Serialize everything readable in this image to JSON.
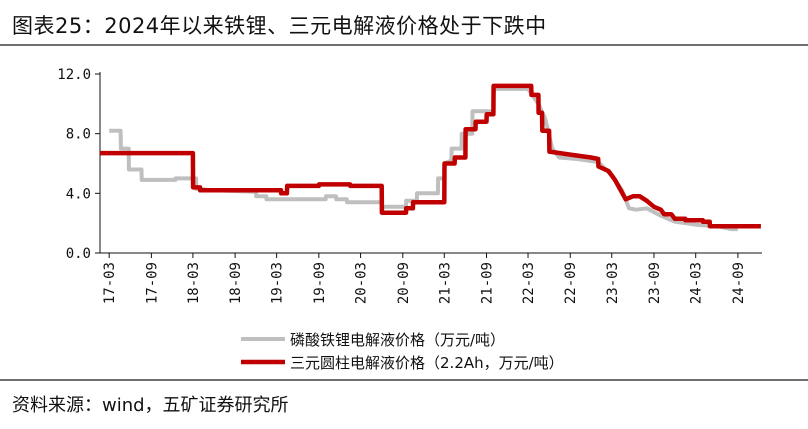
{
  "title": "图表25：2024年以来铁锂、三元电解液价格处于下跌中",
  "source": "资料来源：wind，五矿证券研究所",
  "chart_data": {
    "type": "line",
    "x_type": "date",
    "xlim": [
      "2017-01-20",
      "2024-12-15"
    ],
    "ylim": [
      0,
      12
    ],
    "y_ticks": [
      0,
      4,
      8,
      12
    ],
    "y_tick_labels": [
      "0.0",
      "4.0",
      "8.0",
      "12.0"
    ],
    "x_ticks": [
      "2017-03",
      "2017-09",
      "2018-03",
      "2018-09",
      "2019-03",
      "2019-09",
      "2020-03",
      "2020-09",
      "2021-03",
      "2021-09",
      "2022-03",
      "2022-09",
      "2023-03",
      "2023-09",
      "2024-03",
      "2024-09"
    ],
    "x_tick_labels": [
      "17-03",
      "17-09",
      "18-03",
      "18-09",
      "19-03",
      "19-09",
      "20-03",
      "20-09",
      "21-03",
      "21-09",
      "22-03",
      "22-09",
      "23-03",
      "23-09",
      "24-03",
      "24-09"
    ],
    "legend_position": "bottom-center",
    "grid": false,
    "series": [
      {
        "name": "磷酸铁锂电解液价格（万元/吨）",
        "color": "#bfbfbf",
        "points": [
          [
            "2017-03-01",
            8.2
          ],
          [
            "2017-04-20",
            8.2
          ],
          [
            "2017-04-21",
            7.0
          ],
          [
            "2017-05-25",
            7.0
          ],
          [
            "2017-05-26",
            5.6
          ],
          [
            "2017-07-20",
            5.6
          ],
          [
            "2017-07-21",
            4.9
          ],
          [
            "2017-12-15",
            4.9
          ],
          [
            "2017-12-16",
            5.0
          ],
          [
            "2018-03-15",
            5.0
          ],
          [
            "2018-03-16",
            4.3
          ],
          [
            "2018-06-01",
            4.2
          ],
          [
            "2018-12-01",
            4.1
          ],
          [
            "2018-12-02",
            3.8
          ],
          [
            "2019-01-15",
            3.8
          ],
          [
            "2019-01-16",
            3.6
          ],
          [
            "2019-10-01",
            3.6
          ],
          [
            "2019-10-02",
            3.8
          ],
          [
            "2019-11-15",
            3.8
          ],
          [
            "2019-11-16",
            3.6
          ],
          [
            "2020-01-01",
            3.6
          ],
          [
            "2020-01-02",
            3.4
          ],
          [
            "2020-06-01",
            3.4
          ],
          [
            "2020-06-02",
            3.1
          ],
          [
            "2020-09-15",
            3.1
          ],
          [
            "2020-09-16",
            3.5
          ],
          [
            "2020-11-01",
            3.5
          ],
          [
            "2020-11-02",
            4.0
          ],
          [
            "2021-02-01",
            4.0
          ],
          [
            "2021-02-02",
            5.0
          ],
          [
            "2021-03-01",
            5.0
          ],
          [
            "2021-03-02",
            6.0
          ],
          [
            "2021-04-01",
            6.2
          ],
          [
            "2021-04-02",
            7.0
          ],
          [
            "2021-05-15",
            7.0
          ],
          [
            "2021-05-16",
            8.0
          ],
          [
            "2021-07-01",
            8.0
          ],
          [
            "2021-07-02",
            9.5
          ],
          [
            "2021-10-01",
            9.5
          ],
          [
            "2021-10-02",
            11.0
          ],
          [
            "2022-03-01",
            11.0
          ],
          [
            "2022-04-15",
            10.0
          ],
          [
            "2022-05-15",
            9.0
          ],
          [
            "2022-06-15",
            7.0
          ],
          [
            "2022-07-15",
            6.4
          ],
          [
            "2022-10-01",
            6.3
          ],
          [
            "2023-01-01",
            6.1
          ],
          [
            "2023-03-01",
            5.2
          ],
          [
            "2023-04-15",
            4.2
          ],
          [
            "2023-05-15",
            3.0
          ],
          [
            "2023-06-15",
            2.9
          ],
          [
            "2023-08-01",
            3.0
          ],
          [
            "2023-10-01",
            2.5
          ],
          [
            "2023-12-01",
            2.1
          ],
          [
            "2024-03-01",
            1.9
          ],
          [
            "2024-06-01",
            1.8
          ],
          [
            "2024-08-01",
            1.6
          ],
          [
            "2024-09-01",
            1.6
          ]
        ]
      },
      {
        "name": "三元圆柱电解液价格（2.2Ah，万元/吨）",
        "color": "#c00000",
        "points": [
          [
            "2017-01-20",
            6.7
          ],
          [
            "2018-03-01",
            6.7
          ],
          [
            "2018-03-02",
            4.4
          ],
          [
            "2018-04-01",
            4.4
          ],
          [
            "2018-04-02",
            4.2
          ],
          [
            "2019-03-20",
            4.2
          ],
          [
            "2019-03-21",
            4.0
          ],
          [
            "2019-04-15",
            4.0
          ],
          [
            "2019-04-16",
            4.5
          ],
          [
            "2019-09-01",
            4.5
          ],
          [
            "2019-09-02",
            4.6
          ],
          [
            "2020-01-15",
            4.6
          ],
          [
            "2020-01-16",
            4.5
          ],
          [
            "2020-06-01",
            4.5
          ],
          [
            "2020-06-02",
            2.7
          ],
          [
            "2020-09-15",
            2.7
          ],
          [
            "2020-09-16",
            3.0
          ],
          [
            "2020-10-15",
            3.0
          ],
          [
            "2020-10-16",
            3.4
          ],
          [
            "2021-03-01",
            3.4
          ],
          [
            "2021-03-02",
            6.0
          ],
          [
            "2021-04-15",
            6.0
          ],
          [
            "2021-04-16",
            6.4
          ],
          [
            "2021-06-01",
            6.4
          ],
          [
            "2021-06-02",
            8.3
          ],
          [
            "2021-07-15",
            8.3
          ],
          [
            "2021-07-16",
            8.8
          ],
          [
            "2021-09-01",
            8.8
          ],
          [
            "2021-09-02",
            9.3
          ],
          [
            "2021-10-01",
            9.3
          ],
          [
            "2021-10-02",
            11.2
          ],
          [
            "2022-03-15",
            11.2
          ],
          [
            "2022-03-16",
            10.6
          ],
          [
            "2022-04-15",
            10.6
          ],
          [
            "2022-04-16",
            9.4
          ],
          [
            "2022-05-01",
            9.4
          ],
          [
            "2022-05-02",
            8.2
          ],
          [
            "2022-06-01",
            8.2
          ],
          [
            "2022-06-02",
            6.8
          ],
          [
            "2022-09-01",
            6.6
          ],
          [
            "2022-12-01",
            6.4
          ],
          [
            "2023-01-01",
            6.3
          ],
          [
            "2023-01-02",
            5.8
          ],
          [
            "2023-02-15",
            5.5
          ],
          [
            "2023-03-15",
            4.9
          ],
          [
            "2023-05-01",
            3.6
          ],
          [
            "2023-06-01",
            3.8
          ],
          [
            "2023-07-01",
            3.8
          ],
          [
            "2023-08-01",
            3.5
          ],
          [
            "2023-09-01",
            3.1
          ],
          [
            "2023-10-01",
            2.9
          ],
          [
            "2023-10-15",
            2.6
          ],
          [
            "2023-11-15",
            2.6
          ],
          [
            "2023-12-01",
            2.3
          ],
          [
            "2024-01-15",
            2.3
          ],
          [
            "2024-01-16",
            2.2
          ],
          [
            "2024-04-01",
            2.2
          ],
          [
            "2024-04-02",
            2.1
          ],
          [
            "2024-05-01",
            2.1
          ],
          [
            "2024-05-02",
            1.8
          ],
          [
            "2024-12-10",
            1.8
          ]
        ]
      }
    ]
  }
}
